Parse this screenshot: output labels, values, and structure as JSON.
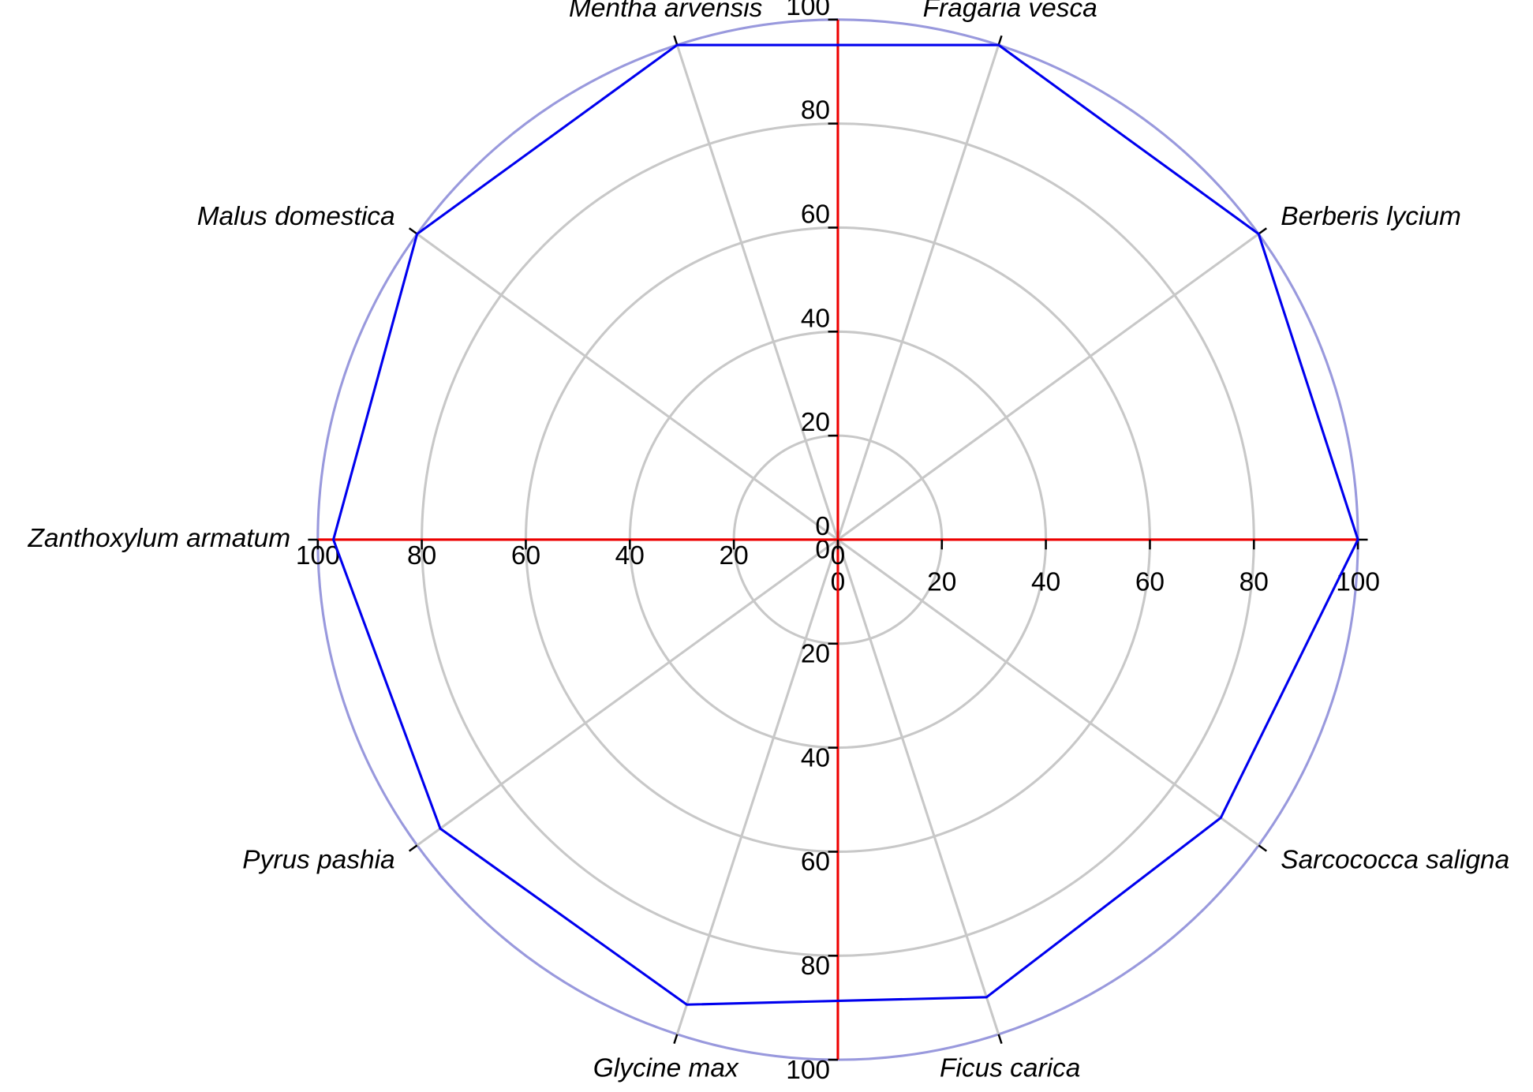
{
  "chart_data": {
    "type": "radar",
    "categories": [
      "Fragaria vesca",
      "Berberis lycium",
      null,
      "Sarcococca saligna",
      "Ficus carica",
      "Glycine max",
      "Pyrus pashia",
      "Zanthoxylum armatum",
      "Malus domestica",
      "Mentha arvensis"
    ],
    "values": [
      100,
      100,
      100,
      91,
      92.5,
      94,
      94.5,
      97,
      100,
      100
    ],
    "color": "#0000ee",
    "axis_color": "#ee0000",
    "grid_color": "#c8c8c8",
    "rlim": [
      0,
      100
    ],
    "rticks": [
      0,
      20,
      40,
      60,
      80,
      100
    ],
    "grid": true
  }
}
